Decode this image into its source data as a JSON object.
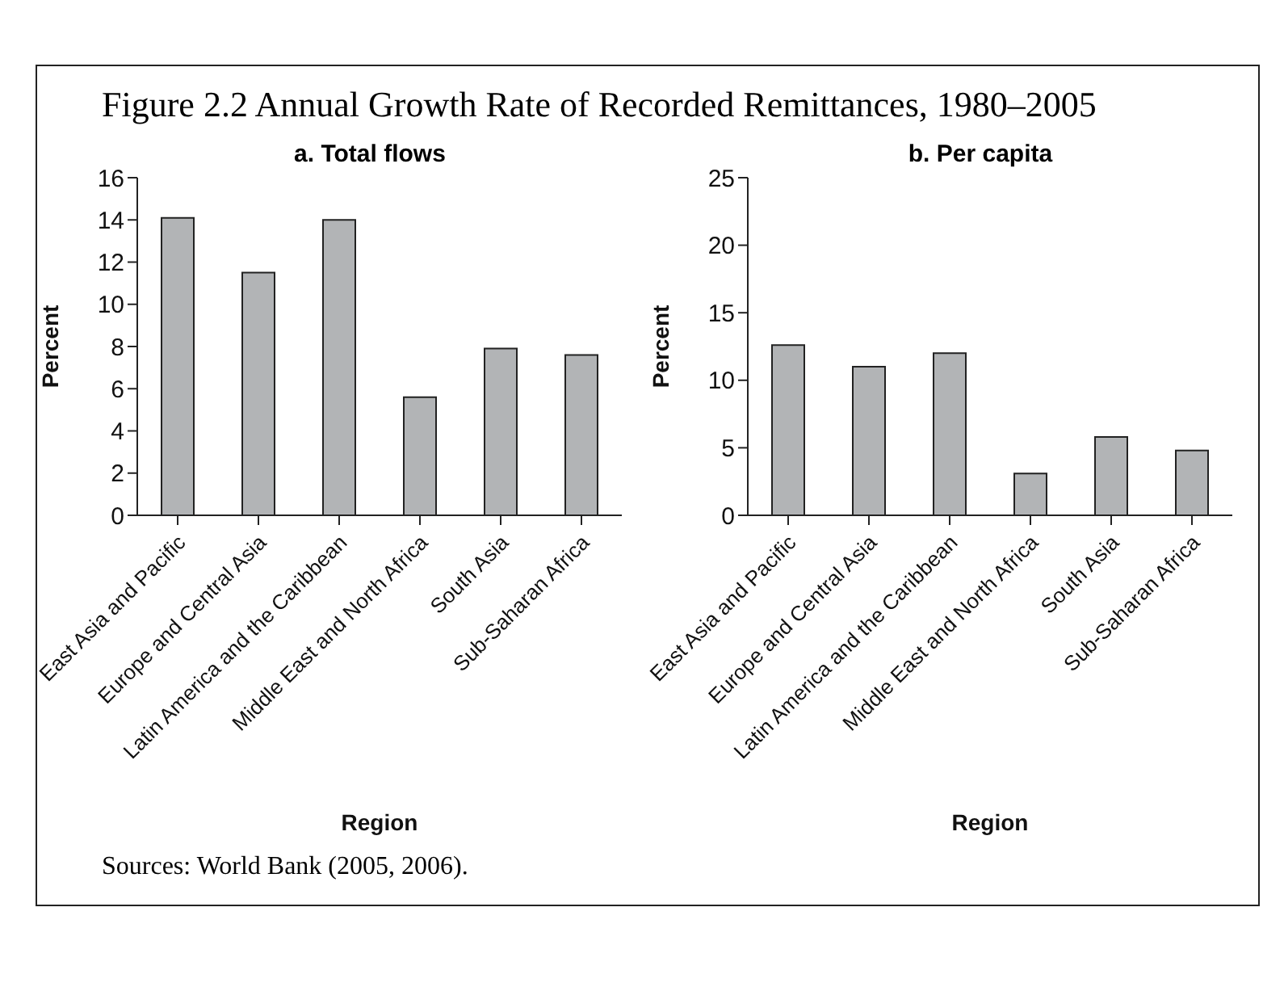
{
  "chart_data": [
    {
      "type": "bar",
      "title": "Figure 2.2 Annual Growth Rate of Recorded Remittances, 1980–2005",
      "subtitle": "a. Total flows",
      "xlabel": "Region",
      "ylabel": "Percent",
      "categories": [
        "East Asia and Pacific",
        "Europe and Central Asia",
        "Latin America and the Caribbean",
        "Middle East and North Africa",
        "South Asia",
        "Sub-Saharan Africa"
      ],
      "values": [
        14.1,
        11.5,
        14.0,
        5.6,
        7.9,
        7.6
      ],
      "color": "#b2b4b6",
      "ylim": [
        0,
        16
      ],
      "yticks": [
        0,
        2,
        4,
        6,
        8,
        10,
        12,
        14,
        16
      ]
    },
    {
      "type": "bar",
      "subtitle": "b. Per capita",
      "xlabel": "Region",
      "ylabel": "Percent",
      "categories": [
        "East Asia and Pacific",
        "Europe and Central Asia",
        "Latin America and the Caribbean",
        "Middle East and North Africa",
        "South Asia",
        "Sub-Saharan Africa"
      ],
      "values": [
        12.6,
        11.0,
        12.0,
        3.1,
        5.8,
        4.8
      ],
      "color": "#b2b4b6",
      "ylim": [
        0,
        25
      ],
      "yticks": [
        0,
        5,
        10,
        15,
        20,
        25
      ],
      "annotations": [
        "Sources: World Bank (2005, 2006)."
      ]
    }
  ]
}
